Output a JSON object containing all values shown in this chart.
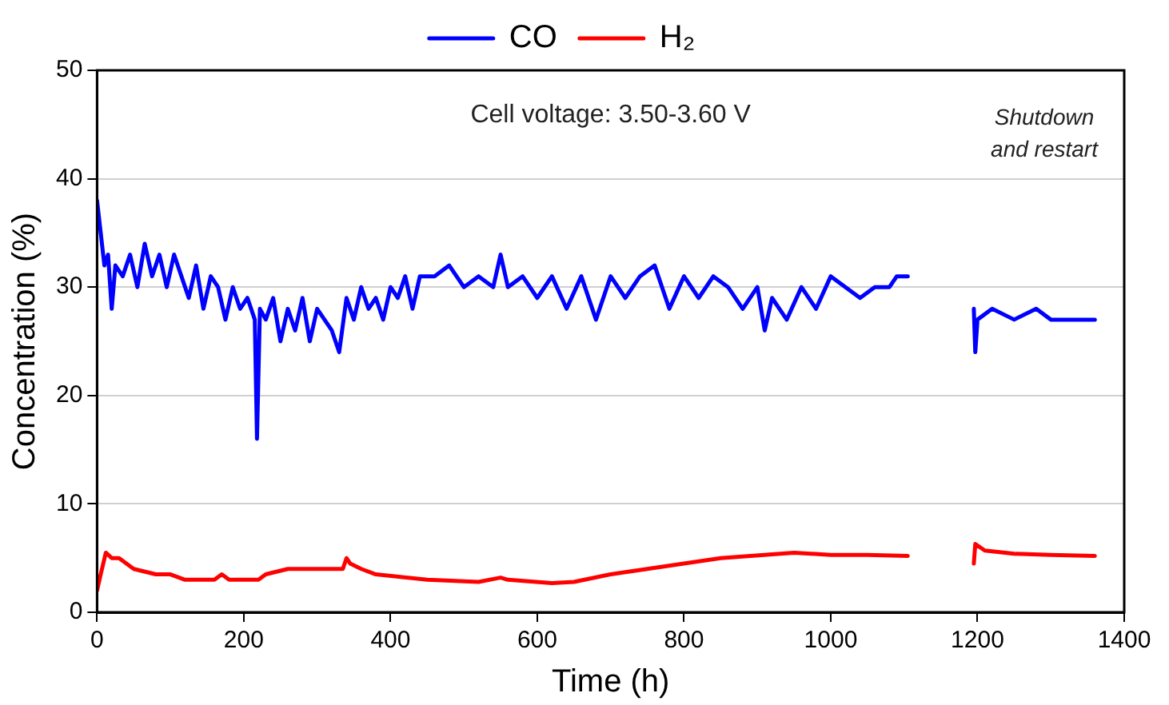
{
  "chart_data": {
    "type": "line",
    "xlabel": "Time (h)",
    "ylabel": "Concentration (%)",
    "xlim": [
      0,
      1400
    ],
    "xticks": [
      0,
      200,
      400,
      600,
      800,
      1000,
      1200,
      1400
    ],
    "ylim": [
      0,
      50
    ],
    "yticks": [
      0,
      10,
      20,
      30,
      40,
      50
    ],
    "grid": "y",
    "legend": "top",
    "marker": "none",
    "line_style": "solid",
    "annotations": [
      "Cell voltage: 3.50-3.60 V",
      "Shutdown and restart"
    ],
    "series": [
      {
        "name": "CO",
        "color": "#0000ff",
        "x": [
          0,
          5,
          10,
          15,
          20,
          25,
          35,
          45,
          55,
          65,
          75,
          85,
          95,
          105,
          115,
          125,
          135,
          145,
          155,
          165,
          175,
          185,
          195,
          205,
          215,
          218,
          222,
          230,
          240,
          250,
          260,
          270,
          280,
          290,
          300,
          310,
          320,
          330,
          340,
          350,
          360,
          370,
          380,
          390,
          400,
          410,
          420,
          430,
          440,
          460,
          480,
          500,
          520,
          540,
          550,
          560,
          580,
          600,
          620,
          640,
          660,
          680,
          700,
          720,
          740,
          760,
          780,
          800,
          820,
          840,
          860,
          880,
          900,
          910,
          920,
          940,
          960,
          980,
          1000,
          1020,
          1040,
          1060,
          1080,
          1090,
          1105,
          1150,
          1195,
          1197,
          1200,
          1220,
          1250,
          1280,
          1300,
          1330,
          1360
        ],
        "values": [
          38,
          35,
          32,
          33,
          28,
          32,
          31,
          33,
          30,
          34,
          31,
          33,
          30,
          33,
          31,
          29,
          32,
          28,
          31,
          30,
          27,
          30,
          28,
          29,
          27,
          16,
          28,
          27,
          29,
          25,
          28,
          26,
          29,
          25,
          28,
          27,
          26,
          24,
          29,
          27,
          30,
          28,
          29,
          27,
          30,
          29,
          31,
          28,
          31,
          31,
          32,
          30,
          31,
          30,
          33,
          30,
          31,
          29,
          31,
          28,
          31,
          27,
          31,
          29,
          31,
          32,
          28,
          31,
          29,
          31,
          30,
          28,
          30,
          26,
          29,
          27,
          30,
          28,
          31,
          30,
          29,
          30,
          30,
          31,
          31,
          null,
          28,
          24,
          27,
          28,
          27,
          28,
          27,
          27,
          27
        ]
      },
      {
        "name": "H₂",
        "color": "#ff0000",
        "x": [
          0,
          5,
          12,
          20,
          30,
          50,
          80,
          100,
          120,
          160,
          170,
          180,
          220,
          230,
          260,
          300,
          335,
          340,
          345,
          360,
          380,
          450,
          520,
          550,
          560,
          620,
          650,
          700,
          750,
          800,
          850,
          950,
          1000,
          1050,
          1105,
          1150,
          1195,
          1197,
          1210,
          1250,
          1300,
          1360
        ],
        "values": [
          2,
          3.5,
          5.5,
          5,
          5,
          4,
          3.5,
          3.5,
          3,
          3,
          3.5,
          3,
          3,
          3.5,
          4,
          4,
          4,
          5,
          4.5,
          4,
          3.5,
          3,
          2.8,
          3.2,
          3,
          2.7,
          2.8,
          3.5,
          4,
          4.5,
          5,
          5.5,
          5.3,
          5.3,
          5.2,
          null,
          4.5,
          6.3,
          5.7,
          5.4,
          5.3,
          5.2
        ]
      }
    ]
  }
}
